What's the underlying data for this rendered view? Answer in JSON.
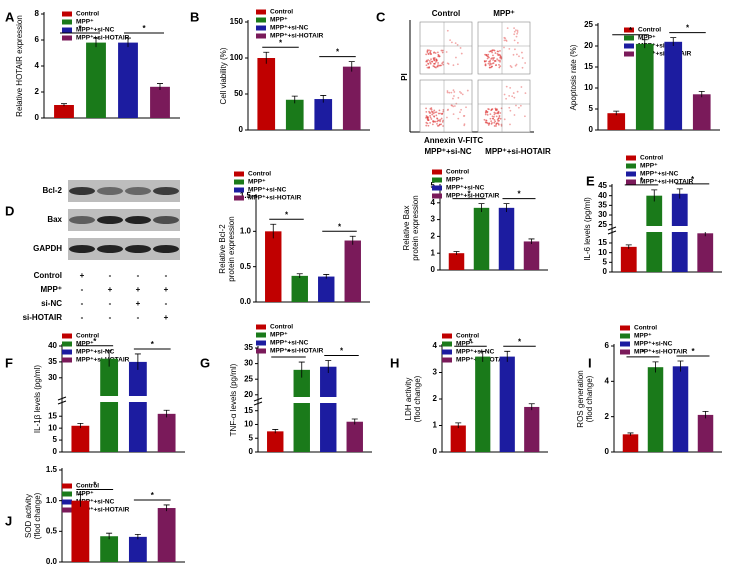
{
  "figure": {
    "flow": {
      "label": "C",
      "top_left": "Control",
      "top_right": "MPP⁺",
      "y_axis": "PI",
      "x_axis": "Annexin V-FITC",
      "bottom_left": "MPP⁺+si-NC",
      "bottom_right": "MPP⁺+si-HOTAIR"
    },
    "blot": {
      "label": "D",
      "bands": [
        "Bcl-2",
        "Bax",
        "GAPDH"
      ],
      "rows": [
        {
          "name": "Control",
          "marks": [
            "+",
            "-",
            "-",
            "-"
          ]
        },
        {
          "name": "MPP⁺",
          "marks": [
            "-",
            "+",
            "+",
            "+"
          ]
        },
        {
          "name": "si-NC",
          "marks": [
            "-",
            "-",
            "+",
            "-"
          ]
        },
        {
          "name": "si-HOTAIR",
          "marks": [
            "-",
            "-",
            "-",
            "+"
          ]
        }
      ]
    }
  },
  "chart_data": [
    {
      "type": "bar",
      "label": "A",
      "ylabel": "Relative HOTAIR expression",
      "ylim": [
        0,
        8
      ],
      "yticks": [
        0,
        2,
        4,
        6,
        8
      ],
      "annotations": [
        "*",
        "*"
      ],
      "series": [
        {
          "name": "Control",
          "color": "#c00000",
          "values": [
            1.0
          ],
          "errors": [
            0.1
          ]
        },
        {
          "name": "MPP⁺",
          "color": "#1a7a1a",
          "values": [
            5.8
          ],
          "errors": [
            0.35
          ]
        },
        {
          "name": "MPP⁺+si-NC",
          "color": "#1c1ca0",
          "values": [
            5.8
          ],
          "errors": [
            0.35
          ]
        },
        {
          "name": "MPP⁺+si-HOTAIR",
          "color": "#7a1a5a",
          "values": [
            2.4
          ],
          "errors": [
            0.25
          ]
        }
      ]
    },
    {
      "type": "bar",
      "label": "B",
      "ylabel": "Cell viability (%)",
      "ylim": [
        0,
        150
      ],
      "yticks": [
        0,
        50,
        100,
        150
      ],
      "annotations": [
        "*",
        "*"
      ],
      "series": [
        {
          "name": "Control",
          "color": "#c00000",
          "values": [
            100
          ],
          "errors": [
            8
          ]
        },
        {
          "name": "MPP⁺",
          "color": "#1a7a1a",
          "values": [
            42
          ],
          "errors": [
            5
          ]
        },
        {
          "name": "MPP⁺+si-NC",
          "color": "#1c1ca0",
          "values": [
            43
          ],
          "errors": [
            5
          ]
        },
        {
          "name": "MPP⁺+si-HOTAIR",
          "color": "#7a1a5a",
          "values": [
            88
          ],
          "errors": [
            7
          ]
        }
      ]
    },
    {
      "type": "bar",
      "ylabel": "Apoptosis rate (%)",
      "ylim": [
        0,
        25
      ],
      "yticks": [
        0,
        5,
        10,
        15,
        20,
        25
      ],
      "annotations": [
        "*",
        "*"
      ],
      "series": [
        {
          "name": "Control",
          "color": "#c00000",
          "values": [
            4
          ],
          "errors": [
            0.5
          ]
        },
        {
          "name": "MPP⁺",
          "color": "#1a7a1a",
          "values": [
            20.5
          ],
          "errors": [
            1
          ]
        },
        {
          "name": "MPP⁺+si-NC",
          "color": "#1c1ca0",
          "values": [
            21
          ],
          "errors": [
            1
          ]
        },
        {
          "name": "MPP⁺+si-HOTAIR",
          "color": "#7a1a5a",
          "values": [
            8.5
          ],
          "errors": [
            0.7
          ]
        }
      ]
    },
    {
      "type": "bar",
      "ylabel": [
        "Relative Bcl-2",
        "protein expression"
      ],
      "ylim": [
        0,
        1.5
      ],
      "yticks": [
        {
          "value": 0,
          "label": "0.0"
        },
        0.5,
        {
          "value": 1,
          "label": "1.0"
        },
        1.5
      ],
      "annotations": [
        "*",
        "*"
      ],
      "series": [
        {
          "name": "Control",
          "color": "#c00000",
          "values": [
            1.0
          ],
          "errors": [
            0.1
          ]
        },
        {
          "name": "MPP⁺",
          "color": "#1a7a1a",
          "values": [
            0.37
          ],
          "errors": [
            0.03
          ]
        },
        {
          "name": "MPP⁺+si-NC",
          "color": "#1c1ca0",
          "values": [
            0.36
          ],
          "errors": [
            0.03
          ]
        },
        {
          "name": "MPP⁺+si-HOTAIR",
          "color": "#7a1a5a",
          "values": [
            0.87
          ],
          "errors": [
            0.06
          ]
        }
      ]
    },
    {
      "type": "bar",
      "ylabel": [
        "Relative Bax",
        "protein expression"
      ],
      "ylim": [
        0,
        5
      ],
      "yticks": [
        0,
        1,
        2,
        3,
        4,
        5
      ],
      "annotations": [
        "*",
        "*"
      ],
      "series": [
        {
          "name": "Control",
          "color": "#c00000",
          "values": [
            1.0
          ],
          "errors": [
            0.1
          ]
        },
        {
          "name": "MPP⁺",
          "color": "#1a7a1a",
          "values": [
            3.7
          ],
          "errors": [
            0.25
          ]
        },
        {
          "name": "MPP⁺+si-NC",
          "color": "#1c1ca0",
          "values": [
            3.7
          ],
          "errors": [
            0.25
          ]
        },
        {
          "name": "MPP⁺+si-HOTAIR",
          "color": "#7a1a5a",
          "values": [
            1.7
          ],
          "errors": [
            0.15
          ]
        }
      ]
    },
    {
      "type": "bar",
      "label": "E",
      "ylabel": "IL-6 levels (pg/ml)",
      "ylim": [
        0,
        45
      ],
      "ybreak": [
        20,
        25
      ],
      "yticks": [
        0,
        5,
        10,
        15,
        25,
        30,
        35,
        40,
        45
      ],
      "annotations": [
        "*",
        "*"
      ],
      "series": [
        {
          "name": "Control",
          "color": "#c00000",
          "values": [
            13
          ],
          "errors": [
            1
          ]
        },
        {
          "name": "MPP⁺",
          "color": "#1a7a1a",
          "values": [
            40
          ],
          "errors": [
            3
          ]
        },
        {
          "name": "MPP⁺+si-NC",
          "color": "#1c1ca0",
          "values": [
            41
          ],
          "errors": [
            2.5
          ]
        },
        {
          "name": "MPP⁺+si-HOTAIR",
          "color": "#7a1a5a",
          "values": [
            20
          ],
          "errors": [
            1.5
          ]
        }
      ]
    },
    {
      "type": "bar",
      "label": "F",
      "ylabel": "IL-1β levels (pg/ml)",
      "ylim": [
        0,
        40
      ],
      "ybreak": [
        20,
        25
      ],
      "yticks": [
        0,
        5,
        10,
        15,
        30,
        35,
        40
      ],
      "annotations": [
        "*",
        "*"
      ],
      "series": [
        {
          "name": "Control",
          "color": "#c00000",
          "values": [
            11
          ],
          "errors": [
            1
          ]
        },
        {
          "name": "MPP⁺",
          "color": "#1a7a1a",
          "values": [
            36
          ],
          "errors": [
            2.5
          ]
        },
        {
          "name": "MPP⁺+si-NC",
          "color": "#1c1ca0",
          "values": [
            35
          ],
          "errors": [
            2.5
          ]
        },
        {
          "name": "MPP⁺+si-HOTAIR",
          "color": "#7a1a5a",
          "values": [
            16
          ],
          "errors": [
            1.5
          ]
        }
      ]
    },
    {
      "type": "bar",
      "label": "G",
      "ylabel": "TNF-α levels (pg/ml)",
      "ylim": [
        0,
        35
      ],
      "ybreak": [
        17,
        20
      ],
      "yticks": [
        0,
        5,
        10,
        15,
        20,
        25,
        30,
        35
      ],
      "annotations": [
        "*",
        "*"
      ],
      "series": [
        {
          "name": "Control",
          "color": "#c00000",
          "values": [
            7.5
          ],
          "errors": [
            0.7
          ]
        },
        {
          "name": "MPP⁺",
          "color": "#1a7a1a",
          "values": [
            28
          ],
          "errors": [
            2.5
          ]
        },
        {
          "name": "MPP⁺+si-NC",
          "color": "#1c1ca0",
          "values": [
            29
          ],
          "errors": [
            2
          ]
        },
        {
          "name": "MPP⁺+si-HOTAIR",
          "color": "#7a1a5a",
          "values": [
            11
          ],
          "errors": [
            1
          ]
        }
      ]
    },
    {
      "type": "bar",
      "label": "H",
      "ylabel": [
        "LDH activity",
        "(flod change)"
      ],
      "ylim": [
        0,
        4
      ],
      "yticks": [
        0,
        1,
        2,
        3,
        4
      ],
      "annotations": [
        "*",
        "*"
      ],
      "series": [
        {
          "name": "Control",
          "color": "#c00000",
          "values": [
            1.0
          ],
          "errors": [
            0.1
          ]
        },
        {
          "name": "MPP⁺",
          "color": "#1a7a1a",
          "values": [
            3.6
          ],
          "errors": [
            0.2
          ]
        },
        {
          "name": "MPP⁺+si-NC",
          "color": "#1c1ca0",
          "values": [
            3.6
          ],
          "errors": [
            0.2
          ]
        },
        {
          "name": "MPP⁺+si-HOTAIR",
          "color": "#7a1a5a",
          "values": [
            1.7
          ],
          "errors": [
            0.12
          ]
        }
      ]
    },
    {
      "type": "bar",
      "label": "I",
      "ylabel": [
        "ROS generation",
        "(flod change)"
      ],
      "ylim": [
        0,
        6
      ],
      "yticks": [
        0,
        2,
        4,
        6
      ],
      "annotations": [
        "*",
        "*"
      ],
      "series": [
        {
          "name": "Control",
          "color": "#c00000",
          "values": [
            1.0
          ],
          "errors": [
            0.08
          ]
        },
        {
          "name": "MPP⁺",
          "color": "#1a7a1a",
          "values": [
            4.8
          ],
          "errors": [
            0.3
          ]
        },
        {
          "name": "MPP⁺+si-NC",
          "color": "#1c1ca0",
          "values": [
            4.85
          ],
          "errors": [
            0.3
          ]
        },
        {
          "name": "MPP⁺+si-HOTAIR",
          "color": "#7a1a5a",
          "values": [
            2.1
          ],
          "errors": [
            0.2
          ]
        }
      ]
    },
    {
      "type": "bar",
      "label": "J",
      "ylabel": [
        "SOD activity",
        "(flod change)"
      ],
      "ylim": [
        0,
        1.5
      ],
      "yticks": [
        {
          "value": 0,
          "label": "0.0"
        },
        0.5,
        {
          "value": 1,
          "label": "1.0"
        },
        1.5
      ],
      "annotations": [
        "*",
        "*"
      ],
      "series": [
        {
          "name": "Control",
          "color": "#c00000",
          "values": [
            1.0
          ],
          "errors": [
            0.1
          ]
        },
        {
          "name": "MPP⁺",
          "color": "#1a7a1a",
          "values": [
            0.42
          ],
          "errors": [
            0.05
          ]
        },
        {
          "name": "MPP⁺+si-NC",
          "color": "#1c1ca0",
          "values": [
            0.41
          ],
          "errors": [
            0.04
          ]
        },
        {
          "name": "MPP⁺+si-HOTAIR",
          "color": "#7a1a5a",
          "values": [
            0.88
          ],
          "errors": [
            0.05
          ]
        }
      ]
    }
  ]
}
